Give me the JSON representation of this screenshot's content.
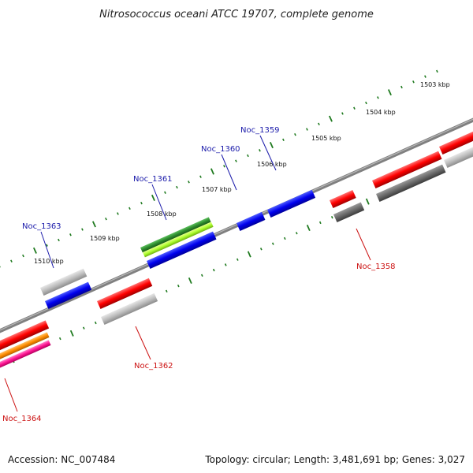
{
  "title": "Nitrosococcus oceani ATCC 19707, complete genome",
  "footer": {
    "accession": "Accession: NC_007484",
    "stats": "Topology: circular; Length: 3,481,691 bp; Genes: 3,027"
  },
  "colors": {
    "forward_label": "#1a1aaa",
    "reverse_label": "#cc1111",
    "tick": "#1f7a1f",
    "backbone": "#808080"
  },
  "kbp_labels": [
    "1503 kbp",
    "1504 kbp",
    "1505 kbp",
    "1506 kbp",
    "1507 kbp",
    "1508 kbp",
    "1509 kbp",
    "1510 kbp"
  ],
  "gene_labels": {
    "forward": [
      "Noc_1359",
      "Noc_1360",
      "Noc_1361",
      "Noc_1363"
    ],
    "reverse": [
      "Noc_1358",
      "Noc_1362",
      "Noc_1364"
    ]
  },
  "legend_colors": [
    "#0000ee",
    "#c0c0c0",
    "#ff0000",
    "#707070",
    "#ff8c00",
    "#ff1493",
    "#2e8b2e",
    "#adff2f"
  ]
}
